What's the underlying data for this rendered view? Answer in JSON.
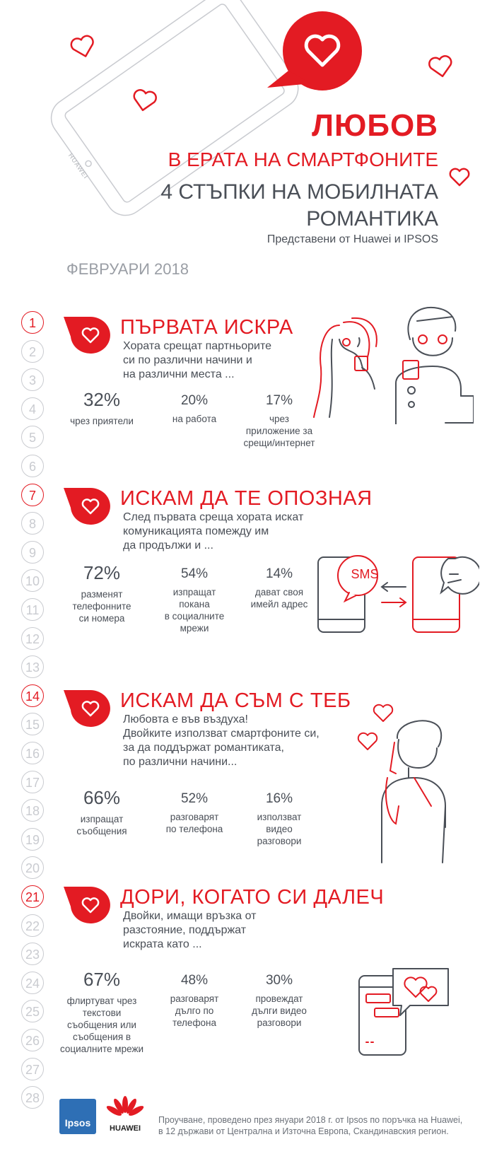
{
  "header": {
    "title": "ЛЮБОВ",
    "subtitle1": "В ЕРАТА НА СМАРТФОНИТЕ",
    "subtitle2_line1": "4 СТЪПКИ НА МОБИЛНАТА",
    "subtitle2_line2": "РОМАНТИКА",
    "presented_by": "Представени от Huawei и IPSOS",
    "date": "ФЕВРУАРИ 2018",
    "phone_brand": "HUAWEI"
  },
  "timeline": [
    "1",
    "2",
    "3",
    "4",
    "5",
    "6",
    "7",
    "8",
    "9",
    "10",
    "11",
    "12",
    "13",
    "14",
    "15",
    "16",
    "17",
    "18",
    "19",
    "20",
    "21",
    "22",
    "23",
    "24",
    "25",
    "26",
    "27",
    "28"
  ],
  "sections": [
    {
      "title": "ПЪРВАТА ИСКРА",
      "description": "Хората срещат партньорите\nси по различни начини и\nна различни места ...",
      "stats": [
        {
          "value": "32%",
          "label": "чрез приятели"
        },
        {
          "value": "20%",
          "label": "на работа"
        },
        {
          "value": "17%",
          "label": "чрез\nприложение за\nсрещи/интернет"
        }
      ]
    },
    {
      "title": "ИСКАМ ДА ТЕ ОПОЗНАЯ",
      "description": "След първата среща хората искат\nкомуникацията помежду им\nда продължи и ...",
      "stats": [
        {
          "value": "72%",
          "label": "разменят\nтелефонните\nси номера"
        },
        {
          "value": "54%",
          "label": "изпращат\nпокана\nв социалните\nмрежи"
        },
        {
          "value": "14%",
          "label": "дават своя\nимейл адрес"
        }
      ],
      "sms_label": "SMS"
    },
    {
      "title": "ИСКАМ ДА СЪМ С ТЕБ",
      "description": "Любовта е във въздуха!\nДвойките използват смартфоните си,\nза да поддържат романтиката,\nпо различни начини...",
      "stats": [
        {
          "value": "66%",
          "label": "изпращат\nсъобщения"
        },
        {
          "value": "52%",
          "label": "разговарят\nпо телефона"
        },
        {
          "value": "16%",
          "label": "използват\nвидео\nразговори"
        }
      ]
    },
    {
      "title": "ДОРИ, КОГАТО СИ ДАЛЕЧ",
      "description": "Двойки, имащи връзка от\nразстояние, поддържат\nискрата като ...",
      "stats": [
        {
          "value": "67%",
          "label": "флиртуват чрез\nтекстови\nсъобщения или\nсъобщения в\nсоциалните мрежи"
        },
        {
          "value": "48%",
          "label": "разговарят\nдълго по\nтелефона"
        },
        {
          "value": "30%",
          "label": "провеждат\nдълги видео\nразговори"
        }
      ]
    }
  ],
  "footer": {
    "ipsos_logo": "Ipsos",
    "huawei_logo": "HUAWEI",
    "note": "Проучване, проведено през януари 2018 г. от Ipsos по поръчка на Huawei,\nв 12 държави от Централна и Източна Европа, Скандинавския регион."
  },
  "colors": {
    "accent": "#e31b23",
    "text": "#4a4f57",
    "muted": "#c9cbd0"
  }
}
